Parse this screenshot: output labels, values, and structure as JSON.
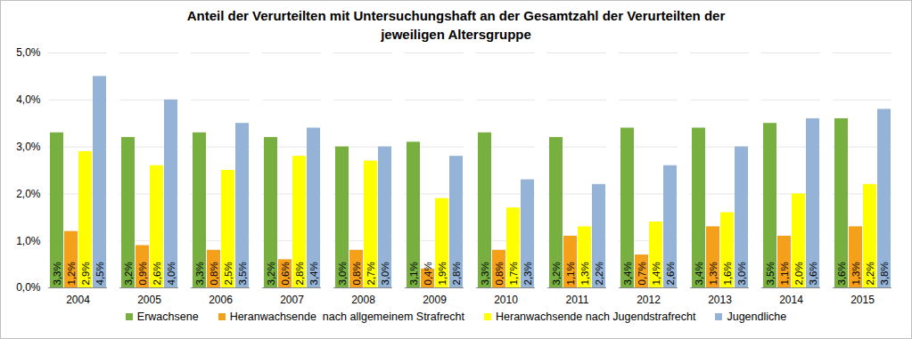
{
  "chart_data": {
    "type": "bar",
    "title": "Anteil der Verurteilten mit Untersuchungshaft an der Gesamtzahl der Verurteilten der jeweiligen Altersgruppe",
    "categories": [
      "2004",
      "2005",
      "2006",
      "2007",
      "2008",
      "2009",
      "2010",
      "2011",
      "2012",
      "2013",
      "2014",
      "2015"
    ],
    "series": [
      {
        "name": "Erwachsene",
        "color": "#77B041",
        "values": [
          3.3,
          3.2,
          3.3,
          3.2,
          3.0,
          3.1,
          3.3,
          3.2,
          3.4,
          3.4,
          3.5,
          3.6
        ],
        "value_labels": [
          "3,3%",
          "3,2%",
          "3,3%",
          "3,2%",
          "3,0%",
          "3,1%",
          "3,3%",
          "3,2%",
          "3,4%",
          "3,4%",
          "3,5%",
          "3,6%"
        ]
      },
      {
        "name": "Heranwachsende  nach allgemeinem Strafrecht",
        "color": "#F5A01A",
        "values": [
          1.2,
          0.9,
          0.8,
          0.6,
          0.8,
          0.4,
          0.8,
          1.1,
          0.7,
          1.3,
          1.1,
          1.3
        ],
        "value_labels": [
          "1,2%",
          "0,9%",
          "0,8%",
          "0,6%",
          "0,8%",
          "0,4%",
          "0,8%",
          "1,1%",
          "0,7%",
          "1,3%",
          "1,1%",
          "1,3%"
        ]
      },
      {
        "name": "Heranwachsende nach Jugendstrafrecht",
        "color": "#FFFF00",
        "values": [
          2.9,
          2.6,
          2.5,
          2.8,
          2.7,
          1.9,
          1.7,
          1.3,
          1.4,
          1.6,
          2.0,
          2.2
        ],
        "value_labels": [
          "2,9%",
          "2,6%",
          "2,5%",
          "2,8%",
          "2,7%",
          "1,9%",
          "1,7%",
          "1,3%",
          "1,4%",
          "1,6%",
          "2,0%",
          "2,2%"
        ]
      },
      {
        "name": "Jugendliche",
        "color": "#95B3D7",
        "values": [
          4.5,
          4.0,
          3.5,
          3.4,
          3.0,
          2.8,
          2.3,
          2.2,
          2.6,
          3.0,
          3.6,
          3.8
        ],
        "value_labels": [
          "4,5%",
          "4,0%",
          "3,5%",
          "3,4%",
          "3,0%",
          "2,8%",
          "2,3%",
          "2,2%",
          "2,6%",
          "3,0%",
          "3,6%",
          "3,8%"
        ]
      }
    ],
    "ylim": [
      0,
      5
    ],
    "yticks": [
      {
        "value": 0,
        "label": "0,0%"
      },
      {
        "value": 1,
        "label": "1,0%"
      },
      {
        "value": 2,
        "label": "2,0%"
      },
      {
        "value": 3,
        "label": "3,0%"
      },
      {
        "value": 4,
        "label": "4,0%"
      },
      {
        "value": 5,
        "label": "5,0%"
      }
    ],
    "grid": true,
    "data_labels": true,
    "legend": "bottom"
  }
}
